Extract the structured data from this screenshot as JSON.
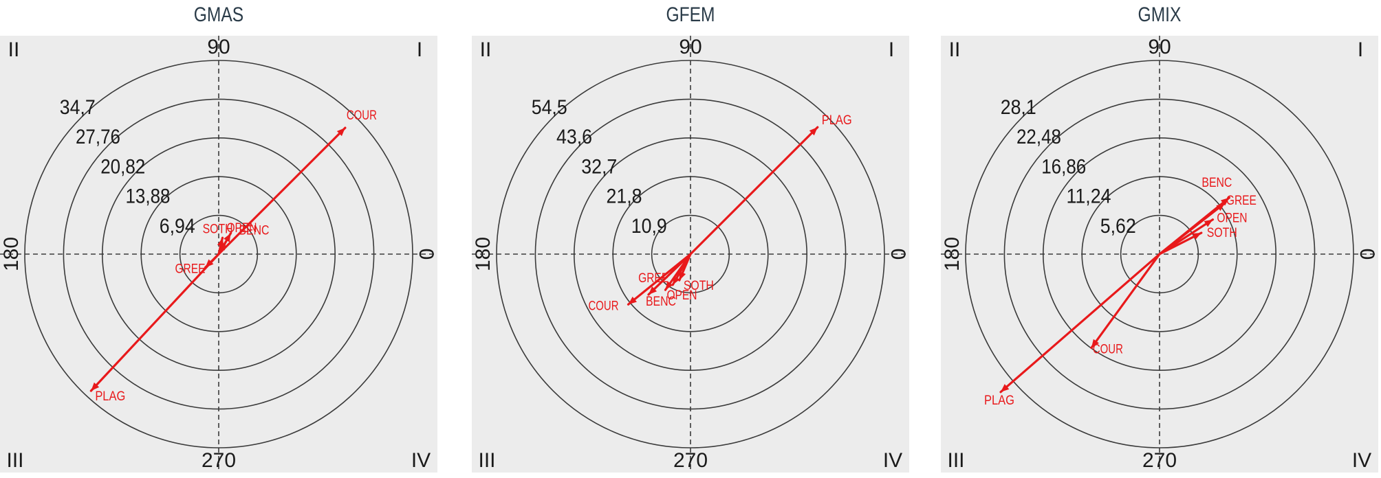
{
  "chart_data": [
    {
      "type": "polar-vector",
      "title": "GMAS",
      "angle_labels": [
        "90",
        "180",
        "270",
        "0"
      ],
      "quadrant_labels": [
        "I",
        "II",
        "III",
        "IV"
      ],
      "radial_ticks": [
        "6,94",
        "13,88",
        "20,82",
        "27,76",
        "34,7"
      ],
      "radial_max": 34.7,
      "series": [
        {
          "label": "COUR",
          "angle": 45,
          "magnitude": 32.0
        },
        {
          "label": "PLAG",
          "angle": 227,
          "magnitude": 33.5
        },
        {
          "label": "OPEN",
          "angle": 77,
          "magnitude": 3.0
        },
        {
          "label": "BENC",
          "angle": 60,
          "magnitude": 4.3
        },
        {
          "label": "SOTH",
          "angle": 60,
          "magnitude": 2.6
        },
        {
          "label": "GREE",
          "angle": 225,
          "magnitude": 3.4
        }
      ]
    },
    {
      "type": "polar-vector",
      "title": "GFEM",
      "angle_labels": [
        "90",
        "180",
        "270",
        "0"
      ],
      "quadrant_labels": [
        "I",
        "II",
        "III",
        "IV"
      ],
      "radial_ticks": [
        "10,9",
        "21,8",
        "32,7",
        "43,6",
        "54,5"
      ],
      "radial_max": 54.5,
      "series": [
        {
          "label": "PLAG",
          "angle": 45,
          "magnitude": 50.5
        },
        {
          "label": "COUR",
          "angle": 219,
          "magnitude": 22.5
        },
        {
          "label": "BENC",
          "angle": 224,
          "magnitude": 16.4
        },
        {
          "label": "OPEN",
          "angle": 235,
          "magnitude": 12.3
        },
        {
          "label": "SOTH",
          "angle": 247,
          "magnitude": 8.0
        },
        {
          "label": "GREE",
          "angle": 240,
          "magnitude": 10.0
        }
      ]
    },
    {
      "type": "polar-vector",
      "title": "GMIX",
      "angle_labels": [
        "90",
        "180",
        "270",
        "0"
      ],
      "quadrant_labels": [
        "I",
        "II",
        "III",
        "IV"
      ],
      "radial_ticks": [
        "5,62",
        "11,24",
        "16,86",
        "22,48",
        "28,1"
      ],
      "radial_max": 28.1,
      "series": [
        {
          "label": "PLAG",
          "angle": 221,
          "magnitude": 30.5
        },
        {
          "label": "COUR",
          "angle": 234,
          "magnitude": 16.8
        },
        {
          "label": "BENC",
          "angle": 39,
          "magnitude": 13.0
        },
        {
          "label": "GREE",
          "angle": 38,
          "magnitude": 12.0
        },
        {
          "label": "OPEN",
          "angle": 33,
          "magnitude": 9.2
        },
        {
          "label": "SOTH",
          "angle": 27,
          "magnitude": 6.8
        }
      ]
    }
  ],
  "colors": {
    "vector": "#e8191b",
    "panel_bg": "#ececec",
    "circle": "#3a3a3a",
    "axis": "#3a3a3a",
    "text": "#1a1a1a",
    "title": "#2a3b48"
  }
}
